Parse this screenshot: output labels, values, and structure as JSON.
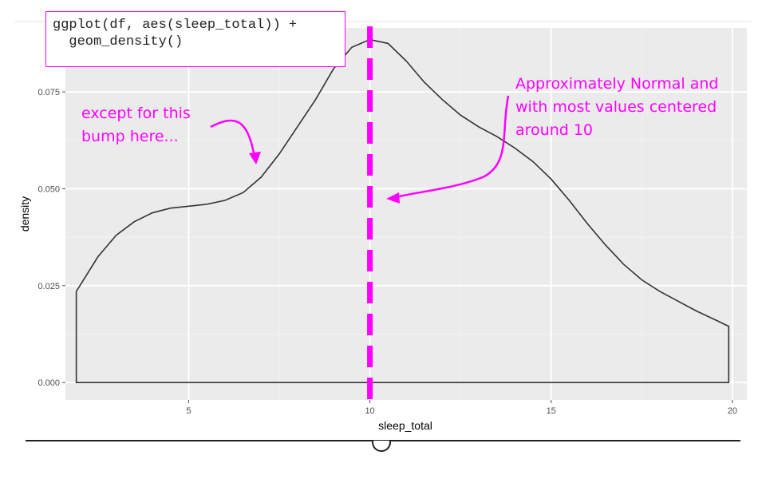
{
  "chart_data": {
    "type": "area",
    "xlabel": "sleep_total",
    "ylabel": "density",
    "xlim": [
      1.6,
      20.4
    ],
    "ylim": [
      -0.0045,
      0.0915
    ],
    "x_ticks": [
      5,
      10,
      15,
      20
    ],
    "y_ticks": [
      0.0,
      0.025,
      0.05,
      0.075
    ],
    "x_tick_labels": [
      "5",
      "10",
      "15",
      "20"
    ],
    "y_tick_labels": [
      "0.000",
      "0.025",
      "0.050",
      "0.075"
    ],
    "grid": true,
    "series": [
      {
        "x": [
          1.9,
          2.5,
          3.0,
          3.5,
          4.0,
          4.5,
          5.0,
          5.5,
          6.0,
          6.5,
          7.0,
          7.5,
          8.0,
          8.5,
          9.0,
          9.5,
          10.0,
          10.5,
          11.0,
          11.5,
          12.0,
          12.5,
          13.0,
          13.5,
          14.0,
          14.5,
          15.0,
          15.5,
          16.0,
          16.5,
          17.0,
          17.5,
          18.0,
          18.5,
          19.0,
          19.5,
          19.9
        ],
        "y": [
          0.0235,
          0.0325,
          0.038,
          0.0415,
          0.0438,
          0.045,
          0.0455,
          0.046,
          0.047,
          0.049,
          0.053,
          0.059,
          0.066,
          0.073,
          0.081,
          0.0865,
          0.0885,
          0.0875,
          0.083,
          0.0775,
          0.073,
          0.069,
          0.066,
          0.0635,
          0.0605,
          0.057,
          0.0525,
          0.047,
          0.041,
          0.0355,
          0.0305,
          0.0265,
          0.0235,
          0.021,
          0.0185,
          0.0163,
          0.0145
        ]
      }
    ],
    "reference_line": {
      "x": 10,
      "color": "#ff00ff",
      "style": "dashed"
    },
    "annotations": [
      {
        "lines": [
          "except for this",
          "bump here..."
        ]
      },
      {
        "lines": [
          "Approximately Normal and",
          "with most values centered",
          "around 10"
        ]
      }
    ]
  },
  "code": {
    "line1": "ggplot(df, aes(sleep_total)) +",
    "line2": "  geom_density()"
  },
  "colors": {
    "panel": "#ebebeb",
    "grid_major": "#ffffff",
    "grid_minor": "#f3f3f3",
    "curve": "#333333",
    "accent": "#ff00ff"
  }
}
